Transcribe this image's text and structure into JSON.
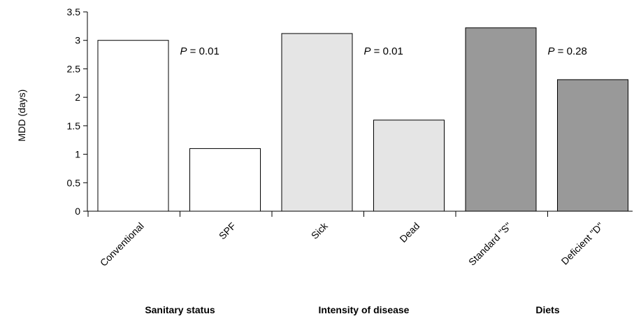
{
  "chart_data": {
    "type": "bar",
    "ylabel": "MDD (days)",
    "ylim": [
      0,
      3.5
    ],
    "yticks": [
      "0",
      "0.5",
      "1",
      "1.5",
      "2",
      "2.5",
      "3",
      "3.5"
    ],
    "grid": false,
    "categories": [
      "Conventional",
      "SPF",
      "Sick",
      "Dead",
      "Standard \"S\"",
      "Deficient \"D\""
    ],
    "values": [
      3.0,
      1.1,
      3.12,
      1.6,
      3.22,
      2.31
    ],
    "bar_colors": [
      "#ffffff",
      "#ffffff",
      "#e5e5e5",
      "#e5e5e5",
      "#999999",
      "#999999"
    ],
    "groups": [
      {
        "label": "Sanitary status",
        "p_italic": "P",
        "p_rest": " = 0.01"
      },
      {
        "label": "Intensity of disease",
        "p_italic": "P",
        "p_rest": " = 0.01"
      },
      {
        "label": "Diets",
        "p_italic": "P",
        "p_rest": " = 0.28"
      }
    ]
  }
}
